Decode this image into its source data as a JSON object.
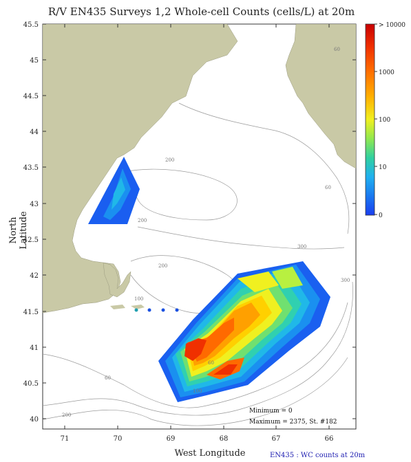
{
  "title": "R/V EN435 Surveys 1,2 Whole-cell Counts (cells/L) at 20m",
  "x_axis": {
    "label": "West Longitude",
    "ticks": [
      "71",
      "70",
      "69",
      "68",
      "67",
      "66"
    ]
  },
  "y_axis": {
    "label": "North Latitude",
    "ticks": [
      "45.5",
      "45",
      "44.5",
      "44",
      "43.5",
      "43",
      "42.5",
      "42",
      "41.5",
      "41",
      "40.5",
      "40"
    ]
  },
  "colorbar": {
    "labels": [
      "> 10000",
      "1000",
      "100",
      "10",
      "0"
    ],
    "colors": [
      "#d40000",
      "#f03000",
      "#ff6a00",
      "#ffa000",
      "#ffd000",
      "#f0f020",
      "#b8f040",
      "#70e070",
      "#30d0b0",
      "#20b8e8",
      "#1a90f0",
      "#1a60f0",
      "#1a3ef0"
    ]
  },
  "stats": {
    "minimum": "Minimum = 0",
    "maximum": "Maximum = 2375, St. #182"
  },
  "caption": "EN435 : WC counts at 20m",
  "contour_labels": [
    "60",
    "200",
    "60",
    "200",
    "300",
    "300",
    "200",
    "100",
    "60",
    "100",
    "60",
    "200"
  ],
  "land_color": "#c9c9a6",
  "map_data": {
    "lon_range": [
      -71.5,
      -65.5
    ],
    "lat_range": [
      39.8,
      45.5
    ]
  }
}
